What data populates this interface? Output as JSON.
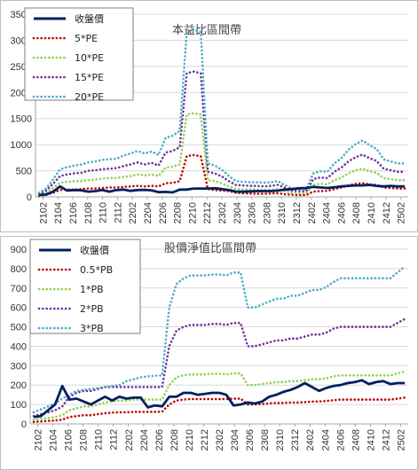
{
  "chart_data": [
    {
      "type": "line",
      "title": "本益比區間帶",
      "xlabel": "",
      "ylabel": "",
      "ylim": [
        0,
        3500
      ],
      "yticks": [
        "0",
        "500",
        "1000",
        "1500",
        "2000",
        "2500",
        "3000",
        "3500"
      ],
      "xticks": [
        "2102",
        "2104",
        "2106",
        "2108",
        "2110",
        "2112",
        "2202",
        "2204",
        "2206",
        "2208",
        "2210",
        "2212",
        "2302",
        "2304",
        "2306",
        "2308",
        "2310",
        "2312",
        "2402",
        "2404",
        "2406",
        "2408",
        "2410",
        "2412",
        "2502"
      ],
      "grid": true,
      "legend": "top-left",
      "series": [
        {
          "name": "收盤價",
          "color": "#002060",
          "style": "solid",
          "values": [
            35,
            45,
            100,
            200,
            120,
            130,
            125,
            100,
            110,
            130,
            100,
            130,
            140,
            115,
            130,
            135,
            125,
            90,
            95,
            85,
            140,
            140,
            160,
            160,
            160,
            165,
            150,
            130,
            100,
            100,
            105,
            110,
            110,
            110,
            120,
            140,
            150,
            165,
            170,
            190,
            180,
            170,
            185,
            200,
            210,
            220,
            220,
            230,
            210,
            200,
            210,
            200,
            200
          ]
        },
        {
          "name": "5*PE",
          "color": "#C00000",
          "style": "dotted",
          "values": [
            20,
            40,
            80,
            130,
            140,
            140,
            150,
            160,
            160,
            170,
            180,
            180,
            190,
            200,
            210,
            200,
            210,
            200,
            260,
            270,
            300,
            780,
            800,
            780,
            150,
            130,
            120,
            110,
            80,
            70,
            65,
            60,
            60,
            65,
            70,
            50,
            40,
            35,
            35,
            100,
            110,
            115,
            150,
            180,
            220,
            250,
            260,
            240,
            230,
            180,
            170,
            160,
            160
          ]
        },
        {
          "name": "10*PE",
          "color": "#92D050",
          "style": "dotted",
          "values": [
            40,
            80,
            170,
            270,
            290,
            300,
            300,
            320,
            330,
            350,
            360,
            360,
            380,
            400,
            430,
            410,
            430,
            400,
            560,
            580,
            620,
            1580,
            1600,
            1580,
            320,
            300,
            260,
            200,
            150,
            140,
            140,
            140,
            130,
            140,
            150,
            110,
            80,
            70,
            70,
            230,
            250,
            240,
            320,
            370,
            450,
            510,
            540,
            490,
            460,
            360,
            340,
            320,
            320
          ]
        },
        {
          "name": "15*PE",
          "color": "#7030A0",
          "style": "dotted",
          "values": [
            60,
            120,
            250,
            400,
            430,
            450,
            460,
            500,
            510,
            530,
            540,
            550,
            590,
            620,
            660,
            620,
            650,
            600,
            850,
            880,
            950,
            2370,
            2400,
            2370,
            480,
            450,
            390,
            300,
            230,
            220,
            210,
            210,
            200,
            210,
            230,
            170,
            120,
            110,
            110,
            340,
            370,
            360,
            480,
            560,
            680,
            760,
            810,
            740,
            690,
            540,
            510,
            480,
            480
          ]
        },
        {
          "name": "20*PE",
          "color": "#4BACC6",
          "style": "dotted",
          "values": [
            80,
            160,
            330,
            530,
            570,
            600,
            620,
            660,
            680,
            710,
            720,
            730,
            790,
            830,
            880,
            830,
            870,
            800,
            1130,
            1170,
            1260,
            3150,
            3200,
            3160,
            640,
            600,
            520,
            400,
            300,
            290,
            280,
            280,
            270,
            280,
            300,
            220,
            160,
            150,
            150,
            450,
            490,
            480,
            640,
            740,
            900,
            1010,
            1080,
            990,
            920,
            720,
            680,
            640,
            640
          ]
        }
      ]
    },
    {
      "type": "line",
      "title": "股價淨值比區間帶",
      "xlabel": "",
      "ylabel": "",
      "ylim": [
        0,
        900
      ],
      "yticks": [
        "0",
        "100",
        "200",
        "300",
        "400",
        "500",
        "600",
        "700",
        "800",
        "900"
      ],
      "xticks": [
        "2102",
        "2104",
        "2106",
        "2108",
        "2110",
        "2112",
        "2202",
        "2204",
        "2206",
        "2208",
        "2210",
        "2212",
        "2302",
        "2304",
        "2306",
        "2308",
        "2310",
        "2312",
        "2402",
        "2404",
        "2406",
        "2408",
        "2410",
        "2412",
        "2502"
      ],
      "grid": true,
      "legend": "top-left",
      "series": [
        {
          "name": "收盤價",
          "color": "#002060",
          "style": "solid",
          "values": [
            35,
            40,
            70,
            100,
            195,
            125,
            130,
            115,
            100,
            120,
            140,
            120,
            140,
            130,
            135,
            135,
            85,
            95,
            90,
            140,
            140,
            160,
            160,
            150,
            155,
            160,
            160,
            150,
            95,
            100,
            110,
            105,
            115,
            140,
            150,
            165,
            175,
            190,
            210,
            190,
            170,
            185,
            195,
            200,
            210,
            215,
            225,
            205,
            215,
            220,
            205,
            210,
            210
          ]
        },
        {
          "name": "0.5*PB",
          "color": "#C00000",
          "style": "dotted",
          "values": [
            10,
            12,
            15,
            18,
            22,
            35,
            40,
            45,
            45,
            50,
            55,
            58,
            60,
            60,
            62,
            62,
            62,
            62,
            63,
            100,
            120,
            125,
            128,
            128,
            128,
            128,
            128,
            128,
            130,
            130,
            100,
            100,
            102,
            105,
            108,
            108,
            110,
            110,
            112,
            115,
            115,
            118,
            122,
            125,
            125,
            125,
            125,
            125,
            125,
            125,
            125,
            130,
            135
          ]
        },
        {
          "name": "1*PB",
          "color": "#92D050",
          "style": "dotted",
          "values": [
            20,
            25,
            30,
            35,
            45,
            70,
            80,
            90,
            90,
            100,
            110,
            115,
            120,
            120,
            125,
            125,
            125,
            125,
            125,
            200,
            240,
            250,
            255,
            255,
            255,
            258,
            258,
            255,
            260,
            260,
            200,
            200,
            205,
            210,
            215,
            215,
            220,
            220,
            225,
            230,
            230,
            235,
            245,
            250,
            250,
            250,
            250,
            250,
            250,
            250,
            250,
            260,
            270
          ]
        },
        {
          "name": "2*PB",
          "color": "#7030A0",
          "style": "dotted",
          "values": [
            40,
            50,
            60,
            70,
            90,
            140,
            160,
            170,
            170,
            180,
            190,
            190,
            190,
            190,
            190,
            190,
            190,
            190,
            190,
            400,
            480,
            500,
            510,
            510,
            510,
            515,
            515,
            510,
            520,
            520,
            400,
            400,
            410,
            420,
            430,
            430,
            440,
            440,
            450,
            460,
            460,
            470,
            490,
            500,
            500,
            500,
            500,
            500,
            500,
            500,
            500,
            520,
            540
          ]
        },
        {
          "name": "3*PB",
          "color": "#4BACC6",
          "style": "dotted",
          "values": [
            60,
            75,
            90,
            105,
            130,
            150,
            170,
            175,
            180,
            185,
            190,
            195,
            200,
            220,
            230,
            240,
            245,
            248,
            250,
            600,
            720,
            750,
            765,
            765,
            765,
            770,
            770,
            765,
            780,
            780,
            600,
            600,
            615,
            630,
            645,
            645,
            660,
            660,
            675,
            690,
            690,
            705,
            730,
            750,
            750,
            750,
            750,
            750,
            750,
            750,
            750,
            780,
            810
          ]
        }
      ]
    }
  ]
}
